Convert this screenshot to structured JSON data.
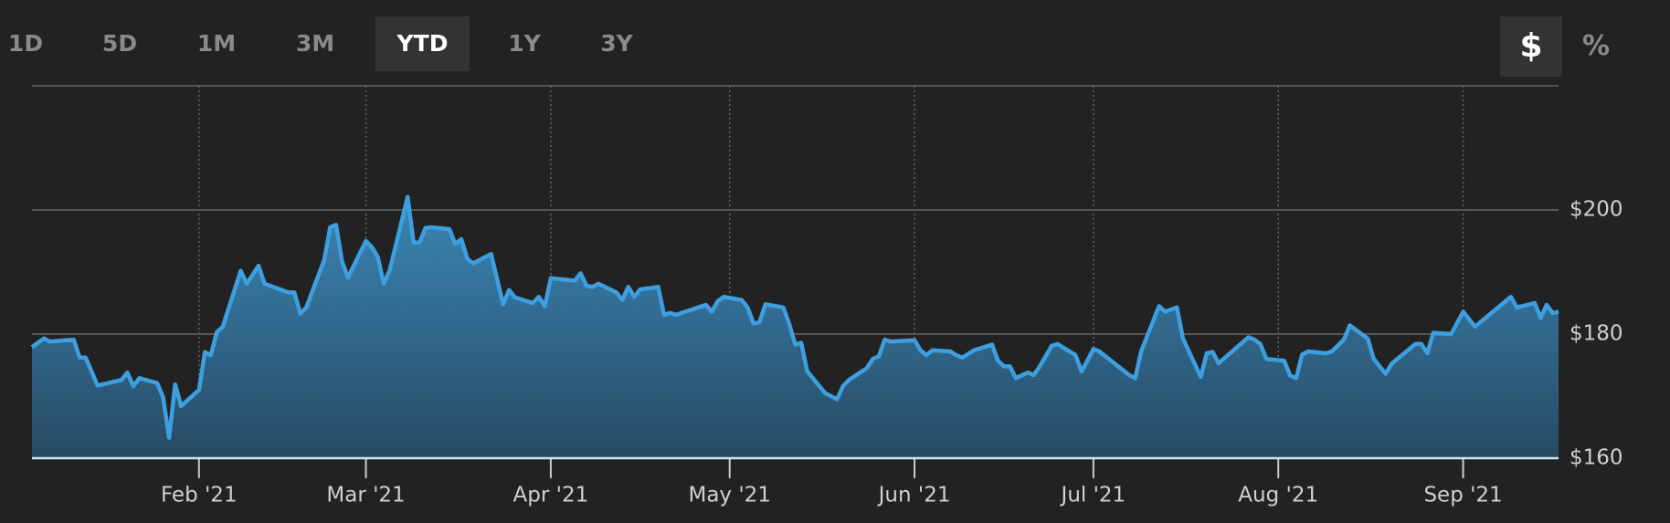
{
  "ui": {
    "range_buttons": [
      "1D",
      "5D",
      "1M",
      "3M",
      "YTD",
      "1Y",
      "3Y"
    ],
    "unit_buttons": [
      "$",
      "%"
    ]
  },
  "chart_data": {
    "type": "area",
    "x": [
      3,
      5,
      6,
      10,
      11,
      12,
      14,
      18,
      19,
      20,
      21,
      24,
      25,
      26,
      27,
      28,
      31,
      32,
      33,
      34,
      35,
      38,
      39,
      41,
      42,
      46,
      47,
      48,
      49,
      52,
      53,
      54,
      55,
      56,
      59,
      60,
      61,
      62,
      63,
      66,
      67,
      68,
      69,
      70,
      73,
      74,
      75,
      76,
      77,
      80,
      82,
      83,
      84,
      87,
      88,
      89,
      90,
      94,
      95,
      96,
      97,
      98,
      101,
      102,
      103,
      104,
      105,
      108,
      109,
      110,
      111,
      116,
      117,
      118,
      119,
      122,
      123,
      124,
      125,
      126,
      129,
      130,
      131,
      132,
      133,
      136,
      138,
      139,
      140,
      143,
      144,
      145,
      146,
      147,
      151,
      152,
      153,
      154,
      157,
      158,
      159,
      161,
      164,
      165,
      166,
      167,
      168,
      170,
      171,
      172,
      174,
      175,
      178,
      179,
      180,
      181,
      182,
      187,
      188,
      189,
      192,
      193,
      195,
      196,
      199,
      200,
      201,
      202,
      207,
      208,
      209,
      210,
      213,
      214,
      215,
      216,
      217,
      220,
      221,
      223,
      224,
      227,
      228,
      230,
      231,
      235,
      236,
      237,
      238,
      241,
      243,
      245,
      251,
      252,
      255,
      256,
      257,
      258,
      259
    ],
    "values": [
      177.9,
      179.3,
      178.8,
      179.1,
      176.2,
      176.2,
      171.7,
      172.6,
      173.8,
      171.6,
      172.9,
      172.1,
      169.8,
      163.3,
      171.9,
      168.4,
      171.0,
      177.1,
      176.6,
      180.3,
      181.2,
      190.2,
      188.1,
      191.0,
      188.1,
      186.7,
      186.7,
      183.3,
      184.3,
      191.9,
      197.2,
      197.6,
      191.7,
      189.1,
      195.0,
      194.0,
      192.4,
      188.1,
      190.3,
      202.1,
      194.7,
      194.8,
      197.1,
      197.2,
      196.9,
      194.5,
      195.3,
      192.1,
      191.4,
      192.9,
      184.8,
      187.1,
      185.9,
      185.0,
      186.0,
      184.5,
      189.0,
      188.6,
      189.8,
      187.8,
      187.6,
      188.1,
      186.7,
      185.5,
      187.6,
      186.0,
      187.2,
      187.6,
      183.1,
      183.4,
      183.1,
      184.7,
      183.6,
      185.3,
      186.0,
      185.5,
      184.3,
      181.7,
      181.9,
      184.8,
      184.3,
      181.6,
      178.3,
      178.6,
      174.0,
      170.5,
      169.5,
      171.6,
      172.6,
      174.5,
      176.0,
      176.4,
      179.1,
      178.8,
      179.0,
      177.4,
      176.6,
      177.4,
      177.2,
      176.6,
      176.2,
      177.4,
      178.3,
      175.7,
      174.8,
      174.8,
      172.9,
      173.8,
      173.4,
      174.8,
      178.1,
      178.4,
      176.6,
      174.0,
      175.7,
      177.6,
      177.2,
      173.4,
      172.9,
      177.2,
      184.5,
      183.6,
      184.3,
      179.3,
      173.1,
      176.9,
      177.1,
      175.3,
      179.5,
      179.1,
      178.4,
      176.0,
      175.7,
      173.3,
      172.9,
      176.7,
      177.2,
      176.9,
      177.2,
      179.1,
      181.4,
      179.3,
      176.0,
      173.6,
      175.2,
      178.4,
      178.4,
      176.9,
      180.2,
      180.0,
      183.6,
      181.2,
      186.0,
      184.3,
      185.0,
      182.6,
      184.7,
      183.4,
      183.6
    ],
    "color": "#3d9fe0",
    "xlim": [
      3,
      259
    ],
    "xticks": [
      {
        "value": 31,
        "label": "Feb '21"
      },
      {
        "value": 59,
        "label": "Mar '21"
      },
      {
        "value": 90,
        "label": "Apr '21"
      },
      {
        "value": 120,
        "label": "May '21"
      },
      {
        "value": 151,
        "label": "Jun '21"
      },
      {
        "value": 181,
        "label": "Jul '21"
      },
      {
        "value": 212,
        "label": "Aug '21"
      },
      {
        "value": 243,
        "label": "Sep '21"
      }
    ],
    "ylim": [
      160,
      220
    ],
    "yticks": [
      {
        "value": 160,
        "label": "$160"
      },
      {
        "value": 180,
        "label": "$180"
      },
      {
        "value": 200,
        "label": "$200"
      }
    ],
    "grid": true
  }
}
